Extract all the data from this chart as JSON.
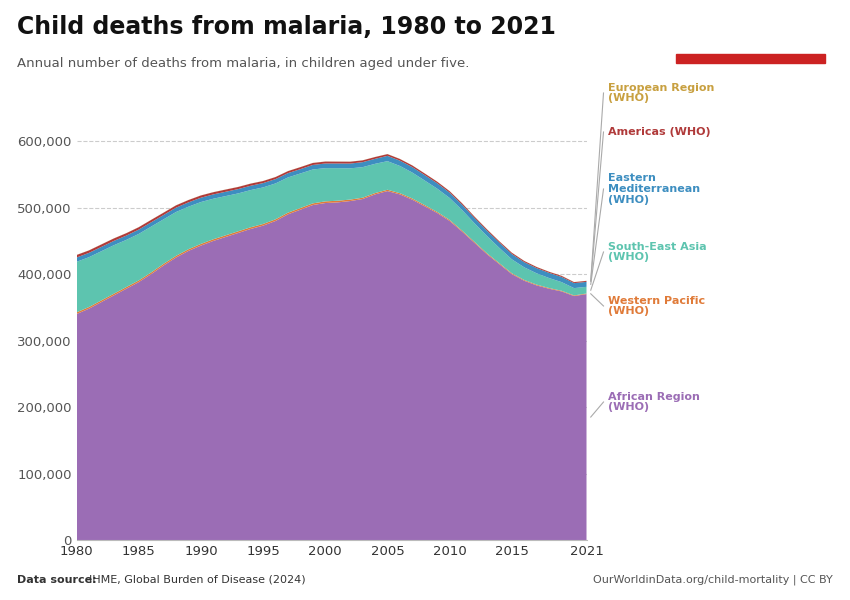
{
  "title": "Child deaths from malaria, 1980 to 2021",
  "subtitle": "Annual number of deaths from malaria, in children aged under five.",
  "source": "Data source: IHME, Global Burden of Disease (2024)",
  "source_bold": "Data source:",
  "attribution": "OurWorldinData.org/child-mortality | CC BY",
  "years": [
    1980,
    1981,
    1982,
    1983,
    1984,
    1985,
    1986,
    1987,
    1988,
    1989,
    1990,
    1991,
    1992,
    1993,
    1994,
    1995,
    1996,
    1997,
    1998,
    1999,
    2000,
    2001,
    2002,
    2003,
    2004,
    2005,
    2006,
    2007,
    2008,
    2009,
    2010,
    2011,
    2012,
    2013,
    2014,
    2015,
    2016,
    2017,
    2018,
    2019,
    2020,
    2021
  ],
  "regions": {
    "African Region (WHO)": {
      "color": "#9B6DB5",
      "label_color": "#9B6DB5",
      "values": [
        340000,
        348000,
        358000,
        368000,
        378000,
        388000,
        400000,
        413000,
        425000,
        435000,
        443000,
        450000,
        456000,
        462000,
        468000,
        473000,
        480000,
        490000,
        497000,
        504000,
        507000,
        508000,
        510000,
        513000,
        520000,
        525000,
        520000,
        512000,
        502000,
        492000,
        480000,
        464000,
        447000,
        430000,
        415000,
        400000,
        390000,
        383000,
        378000,
        374000,
        367000,
        370000
      ]
    },
    "Western Pacific (WHO)": {
      "color": "#E07B39",
      "label_color": "#E07B39",
      "values": [
        2500,
        2500,
        2500,
        2500,
        2500,
        2500,
        2500,
        2500,
        2500,
        2500,
        2500,
        2500,
        2500,
        2500,
        2500,
        2500,
        2500,
        2500,
        2500,
        2500,
        2500,
        2500,
        2200,
        2000,
        2000,
        2000,
        1800,
        1800,
        1800,
        1600,
        1600,
        1500,
        1500,
        1400,
        1400,
        1300,
        1200,
        1200,
        1100,
        1000,
        1000,
        900
      ]
    },
    "South-East Asia (WHO)": {
      "color": "#5DC4AF",
      "label_color": "#5DC4AF",
      "values": [
        76000,
        75000,
        74000,
        73000,
        71000,
        70000,
        69000,
        67000,
        66000,
        64000,
        63000,
        61000,
        59000,
        57000,
        56000,
        55000,
        54000,
        53000,
        52000,
        51000,
        50000,
        49000,
        47000,
        46000,
        44000,
        43000,
        41000,
        39000,
        37000,
        35000,
        33000,
        31000,
        28000,
        26000,
        23000,
        21000,
        19000,
        17000,
        15000,
        13000,
        11000,
        10000
      ]
    },
    "Eastern Mediterranean (WHO)": {
      "color": "#3D8EC0",
      "label_color": "#3D8EC0",
      "values": [
        6500,
        6500,
        6500,
        6500,
        6500,
        6500,
        6500,
        6500,
        6500,
        6500,
        6500,
        6500,
        6500,
        6500,
        6500,
        6500,
        6500,
        6500,
        6500,
        6800,
        7000,
        7000,
        7200,
        7500,
        7500,
        8000,
        8000,
        8200,
        8200,
        8200,
        8000,
        8000,
        8000,
        8000,
        8000,
        8000,
        7800,
        7800,
        7800,
        7800,
        7500,
        7500
      ]
    },
    "Americas (WHO)": {
      "color": "#B03A3A",
      "label_color": "#B03A3A",
      "values": [
        3800,
        3700,
        3700,
        3700,
        3600,
        3600,
        3600,
        3500,
        3500,
        3500,
        3400,
        3300,
        3300,
        3200,
        3200,
        3100,
        3100,
        3000,
        3000,
        3000,
        2900,
        2800,
        2800,
        2700,
        2700,
        2600,
        2500,
        2500,
        2400,
        2300,
        2200,
        2100,
        2000,
        2000,
        1900,
        1900,
        1800,
        1700,
        1600,
        1600,
        1500,
        1500
      ]
    },
    "European Region (WHO)": {
      "color": "#C8A040",
      "label_color": "#C8A040",
      "values": [
        150,
        150,
        150,
        150,
        150,
        150,
        150,
        150,
        150,
        150,
        150,
        150,
        150,
        150,
        150,
        150,
        150,
        150,
        150,
        150,
        150,
        150,
        150,
        150,
        150,
        150,
        150,
        150,
        150,
        150,
        150,
        150,
        150,
        150,
        150,
        150,
        150,
        150,
        150,
        150,
        150,
        150
      ]
    }
  },
  "stack_order": [
    "African Region (WHO)",
    "Western Pacific (WHO)",
    "South-East Asia (WHO)",
    "Eastern Mediterranean (WHO)",
    "Americas (WHO)",
    "European Region (WHO)"
  ],
  "ylim": [
    0,
    650000
  ],
  "yticks": [
    0,
    100000,
    200000,
    300000,
    400000,
    500000,
    600000
  ],
  "xticks": [
    1980,
    1985,
    1990,
    1995,
    2000,
    2005,
    2010,
    2015,
    2021
  ],
  "background_color": "#ffffff",
  "grid_color": "#cccccc",
  "logo_bg": "#1a3a5c",
  "logo_red": "#cc2222"
}
